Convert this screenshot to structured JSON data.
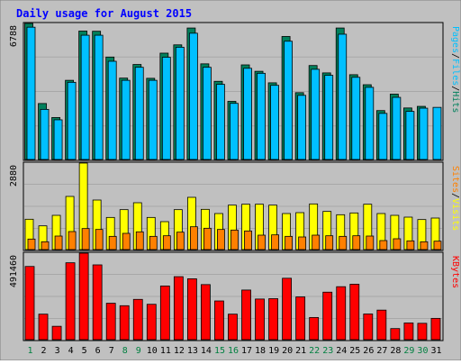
{
  "chart_data": {
    "title": "Daily usage for August 2015",
    "type": "bar",
    "colors": {
      "background": "#c0c0c0",
      "hits": "#00805c",
      "files": "#00c0ff",
      "pages": "#00c0ff",
      "visits": "#ffff00",
      "sites": "#ff8000",
      "kbytes": "#ff0000",
      "title": "#0000ff",
      "day_weekend": "#008040",
      "day_weekday": "#000000"
    },
    "days": [
      "1",
      "2",
      "3",
      "4",
      "5",
      "6",
      "7",
      "8",
      "9",
      "10",
      "11",
      "12",
      "13",
      "14",
      "15",
      "16",
      "17",
      "18",
      "19",
      "20",
      "21",
      "22",
      "23",
      "24",
      "25",
      "26",
      "27",
      "28",
      "29",
      "30",
      "31"
    ],
    "weekend_days": [
      1,
      8,
      9,
      15,
      16,
      22,
      23,
      29,
      30
    ],
    "panels": [
      {
        "id": "hits-files-pages",
        "max_label": "6788",
        "legend": [
          "Pages",
          "/",
          "Files",
          "/",
          "Hits"
        ],
        "legend_colors": [
          "#00c0ff",
          "#000000",
          "#00c0ff",
          "#000000",
          "#00805c"
        ],
        "ymax": 6788,
        "series": [
          {
            "name": "Hits",
            "color": "#00805c",
            "values": [
              6788,
              2792,
              2093,
              3950,
              6408,
              6398,
              5110,
              4060,
              4740,
              4050,
              5305,
              5719,
              6560,
              4772,
              3900,
              2900,
              4720,
              4400,
              3825,
              6138,
              3333,
              4688,
              4320,
              6560,
              4230,
              3730,
              2440,
              3260,
              2570,
              2650,
              0
            ]
          },
          {
            "name": "Files",
            "color": "#00c0ff",
            "values": [
              6600,
              2500,
              1980,
              3850,
              6200,
              6200,
              4900,
              3950,
              4600,
              3950,
              5100,
              5600,
              6300,
              4600,
              3750,
              2800,
              4550,
              4300,
              3700,
              5900,
              3200,
              4500,
              4200,
              6250,
              4100,
              3600,
              2300,
              3100,
              2400,
              2560,
              2600
            ]
          },
          {
            "name": "Pages",
            "color": "#00c0ff",
            "values": []
          }
        ]
      },
      {
        "id": "visits-sites",
        "max_label": "2880",
        "legend": [
          "Sites",
          "/",
          "Visits"
        ],
        "legend_colors": [
          "#ff8000",
          "#000000",
          "#ffff00"
        ],
        "ymax": 2880,
        "series": [
          {
            "name": "Visits",
            "color": "#ffff00",
            "values": [
              1010,
              790,
              1140,
              1770,
              2880,
              1650,
              1070,
              1330,
              1560,
              1070,
              930,
              1330,
              1740,
              1340,
              1200,
              1480,
              1510,
              1510,
              1480,
              1200,
              1230,
              1520,
              1270,
              1160,
              1220,
              1510,
              1200,
              1140,
              1080,
              1000,
              1050
            ]
          },
          {
            "name": "Sites",
            "color": "#ff8000",
            "values": [
              350,
              260,
              450,
              600,
              700,
              670,
              440,
              540,
              590,
              440,
              460,
              580,
              760,
              710,
              670,
              650,
              620,
              480,
              490,
              440,
              420,
              480,
              460,
              440,
              460,
              450,
              300,
              360,
              290,
              260,
              280
            ]
          }
        ]
      },
      {
        "id": "kbytes",
        "max_label": "491460",
        "legend": [
          "KBytes"
        ],
        "legend_colors": [
          "#ff0000"
        ],
        "ymax": 491460,
        "series": [
          {
            "name": "KBytes",
            "color": "#ff0000",
            "values": [
              416000,
              145000,
              76000,
              437000,
              491460,
              425000,
              207000,
              193000,
              229000,
              201000,
              305000,
              358000,
              346000,
              313000,
              220000,
              145000,
              282000,
              231000,
              233000,
              349000,
              243000,
              126000,
              270000,
              301000,
              315000,
              146000,
              168000,
              63000,
              95000,
              93000,
              121000
            ]
          }
        ]
      }
    ]
  }
}
